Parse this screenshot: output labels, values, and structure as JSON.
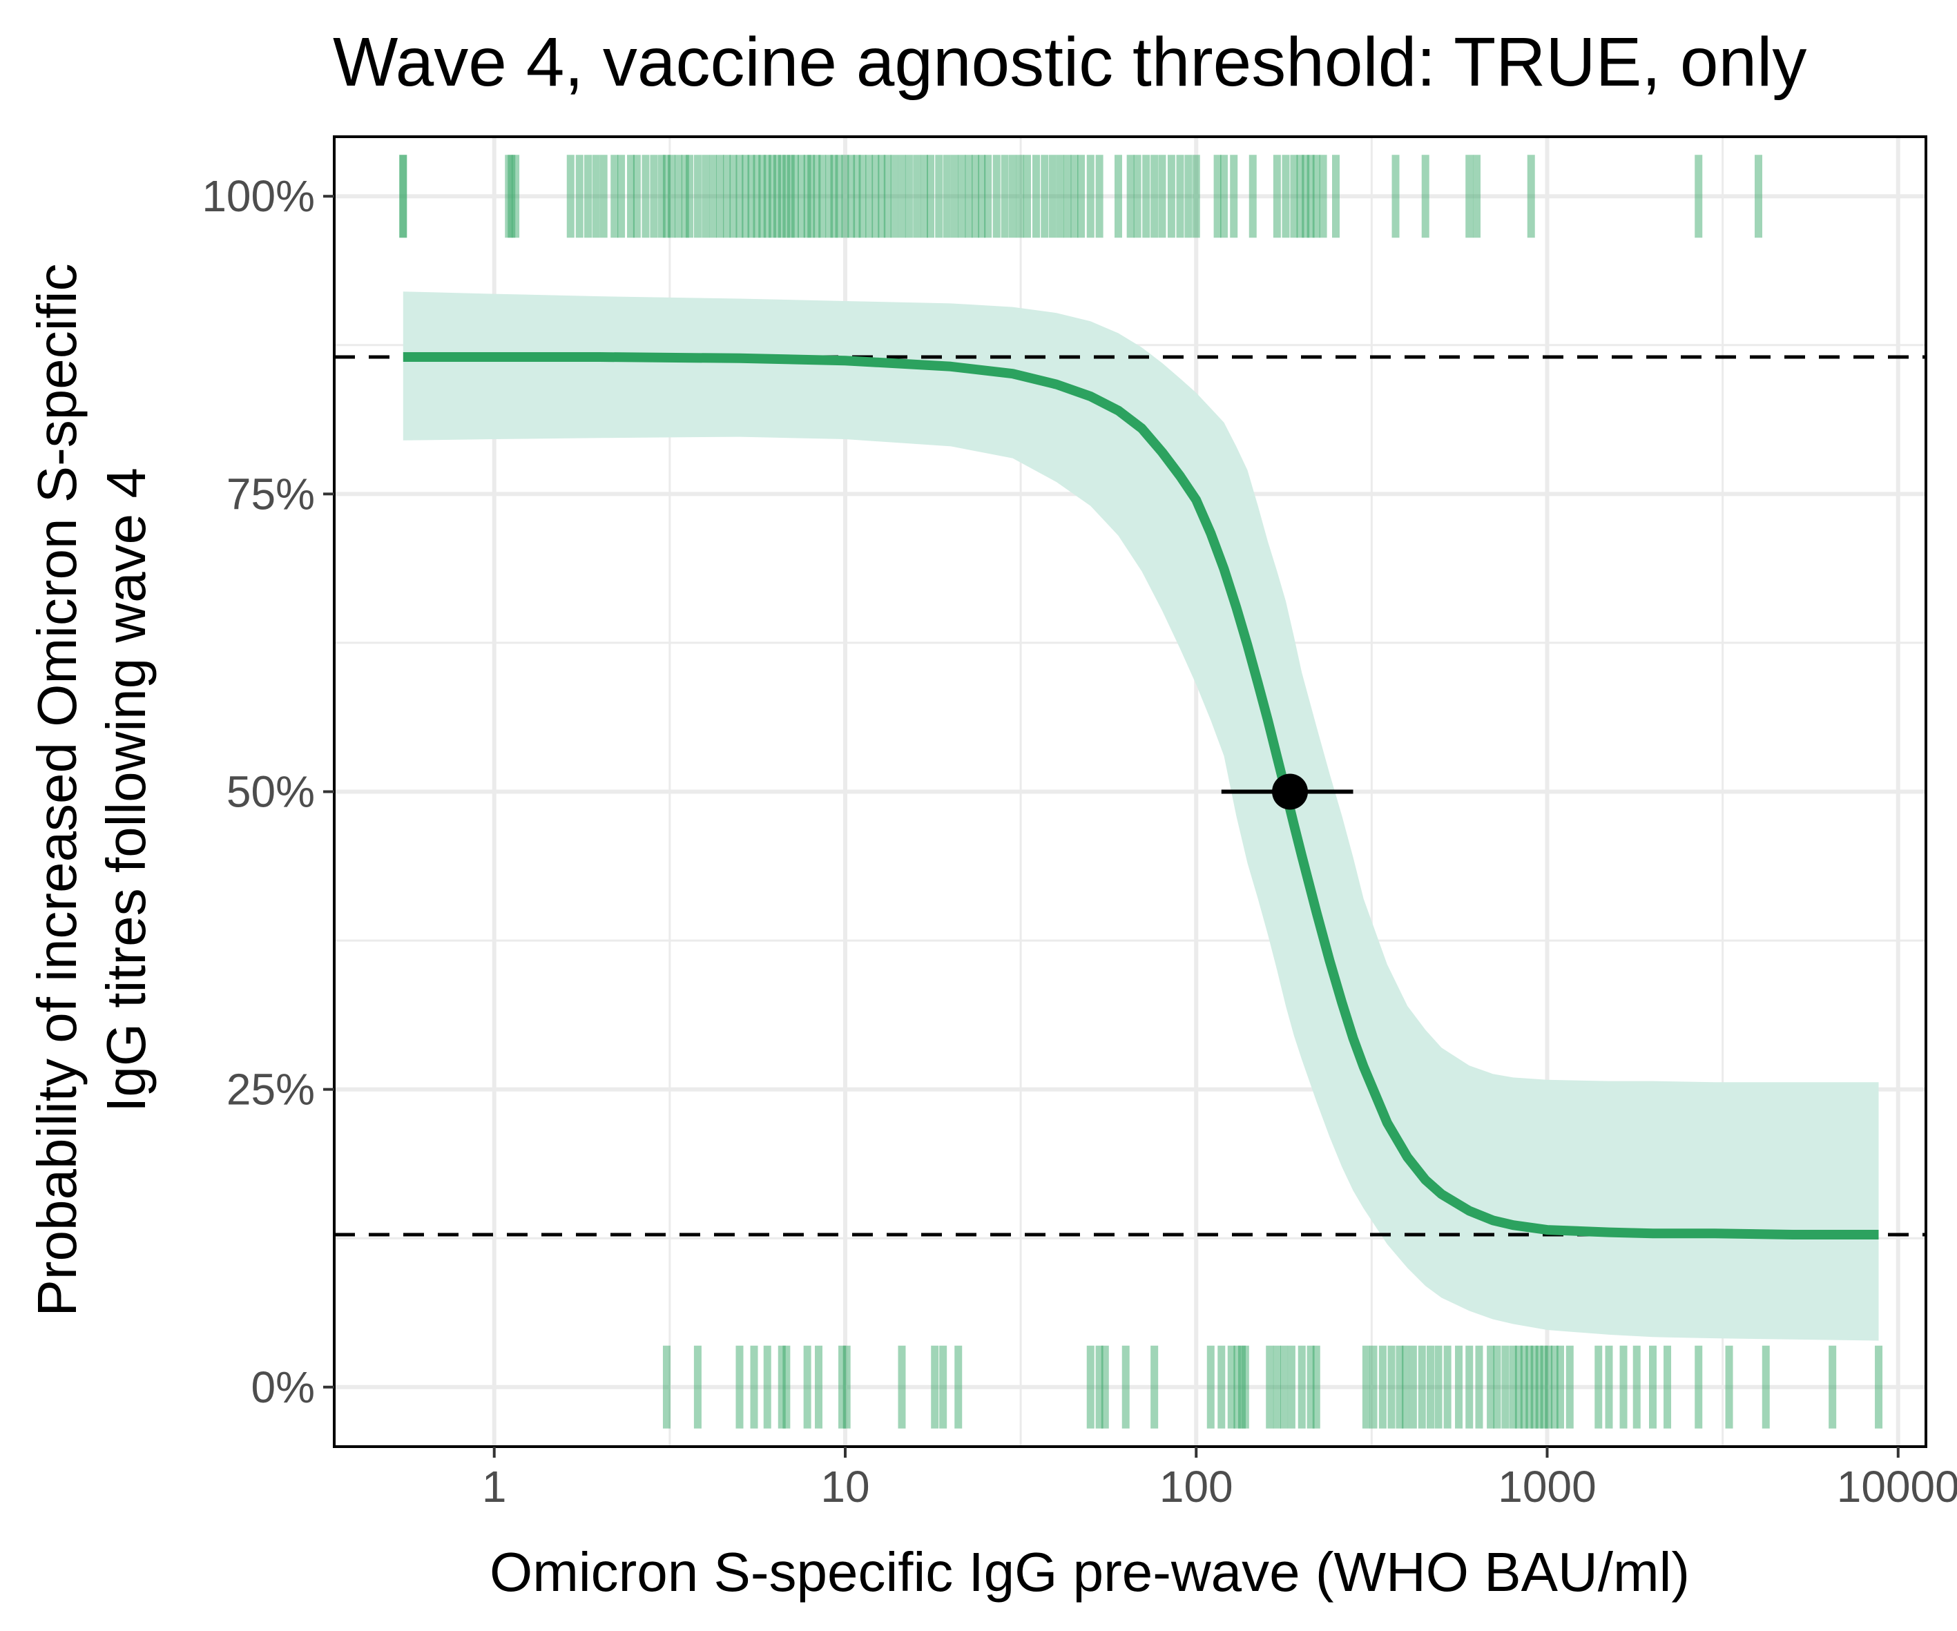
{
  "chart_data": {
    "type": "line",
    "title": "Wave 4, vaccine agnostic threshold: TRUE, only",
    "xlabel": "Omicron S-specific IgG pre-wave (WHO BAU/ml)",
    "ylabel_lines": [
      "Probability of increased Omicron S-specific",
      "IgG titres following wave 4"
    ],
    "x_scale": "log10",
    "xlim": [
      0.35,
      12000
    ],
    "ylim": [
      -0.05,
      1.05
    ],
    "x_ticks": [
      1,
      10,
      100,
      1000,
      10000
    ],
    "x_tick_labels": [
      "1",
      "10",
      "100",
      "1000",
      "10000"
    ],
    "y_ticks": [
      0,
      0.25,
      0.5,
      0.75,
      1.0
    ],
    "y_tick_labels": [
      "0%",
      "25%",
      "50%",
      "75%",
      "100%"
    ],
    "grid": true,
    "colors": {
      "line": "#2ca25f",
      "ribbon": "#d3ede5",
      "rug": "#2ca25f",
      "reference": "#000000",
      "point": "#000000"
    },
    "fit": {
      "x": [
        0.55,
        1,
        2,
        5,
        10,
        20,
        30,
        40,
        50,
        60,
        70,
        80,
        90,
        100,
        110,
        120,
        130,
        140,
        150,
        160,
        170,
        180,
        190,
        200,
        220,
        240,
        260,
        280,
        300,
        350,
        400,
        450,
        500,
        600,
        700,
        800,
        1000,
        1500,
        2000,
        3000,
        5000,
        8800
      ],
      "y": [
        0.865,
        0.865,
        0.865,
        0.864,
        0.862,
        0.857,
        0.851,
        0.842,
        0.832,
        0.82,
        0.805,
        0.785,
        0.765,
        0.745,
        0.717,
        0.687,
        0.655,
        0.623,
        0.591,
        0.56,
        0.529,
        0.5,
        0.472,
        0.446,
        0.399,
        0.358,
        0.323,
        0.293,
        0.269,
        0.222,
        0.193,
        0.174,
        0.162,
        0.148,
        0.14,
        0.136,
        0.132,
        0.13,
        0.129,
        0.129,
        0.128,
        0.128
      ]
    },
    "ci": {
      "x": [
        0.55,
        1,
        2,
        5,
        10,
        20,
        30,
        40,
        50,
        60,
        70,
        80,
        90,
        100,
        110,
        120,
        130,
        140,
        150,
        160,
        170,
        180,
        190,
        200,
        220,
        240,
        260,
        280,
        300,
        350,
        400,
        450,
        500,
        600,
        700,
        800,
        1000,
        1500,
        2000,
        3000,
        5000,
        8800
      ],
      "lower": [
        0.795,
        0.796,
        0.797,
        0.798,
        0.796,
        0.79,
        0.78,
        0.76,
        0.74,
        0.715,
        0.685,
        0.652,
        0.62,
        0.59,
        0.56,
        0.53,
        0.48,
        0.44,
        0.41,
        0.38,
        0.35,
        0.32,
        0.295,
        0.275,
        0.24,
        0.21,
        0.185,
        0.165,
        0.15,
        0.12,
        0.1,
        0.085,
        0.075,
        0.064,
        0.057,
        0.053,
        0.048,
        0.044,
        0.042,
        0.041,
        0.04,
        0.039
      ],
      "upper": [
        0.92,
        0.918,
        0.916,
        0.914,
        0.912,
        0.91,
        0.907,
        0.902,
        0.895,
        0.885,
        0.873,
        0.86,
        0.847,
        0.835,
        0.822,
        0.81,
        0.79,
        0.77,
        0.74,
        0.71,
        0.685,
        0.66,
        0.63,
        0.6,
        0.555,
        0.515,
        0.48,
        0.445,
        0.41,
        0.355,
        0.32,
        0.3,
        0.285,
        0.27,
        0.263,
        0.26,
        0.258,
        0.257,
        0.257,
        0.256,
        0.256,
        0.256
      ]
    },
    "reference_lines_y": [
      0.865,
      0.128
    ],
    "midpoint": {
      "x": 185,
      "y": 0.5,
      "x_lower": 118,
      "x_upper": 280
    },
    "rug_top_y": 1.0,
    "rug_top_x": [
      0.55,
      0.55,
      1.1,
      1.12,
      1.15,
      1.65,
      1.75,
      1.85,
      1.95,
      2.05,
      2.2,
      2.3,
      2.45,
      2.55,
      2.7,
      2.85,
      3.0,
      3.1,
      3.2,
      3.35,
      3.5,
      3.6,
      3.8,
      4.0,
      4.2,
      4.4,
      4.6,
      4.8,
      5.0,
      5.2,
      5.4,
      5.6,
      5.8,
      6.0,
      6.2,
      6.4,
      6.6,
      6.8,
      7.0,
      7.2,
      7.5,
      7.8,
      8.0,
      8.3,
      8.6,
      9.0,
      9.3,
      9.6,
      10.0,
      10.4,
      10.8,
      11.2,
      11.7,
      12.2,
      12.7,
      13.2,
      13.8,
      14.5,
      15.2,
      16.0,
      16.8,
      17.5,
      18.5,
      19.5,
      20.5,
      21.5,
      22.5,
      23.5,
      24.5,
      25.5,
      27.0,
      28.5,
      30.0,
      31.5,
      33.0,
      35.0,
      37.0,
      39.0,
      41.0,
      43.0,
      45.0,
      47.0,
      50.0,
      53.0,
      60.0,
      65.0,
      68.0,
      72.0,
      76.0,
      80.0,
      85.0,
      90.0,
      95.0,
      100.0,
      115.0,
      120.0,
      128.0,
      145.0,
      170.0,
      180.0,
      190.0,
      198.0,
      205.0,
      212.0,
      220.0,
      230.0,
      250.0,
      370.0,
      450.0,
      600.0,
      630.0,
      900.0,
      2700.0,
      4000.0
    ],
    "rug_bottom_y": 0.0,
    "rug_bottom_x": [
      3.1,
      3.8,
      5.0,
      5.5,
      6.0,
      6.6,
      6.8,
      7.8,
      8.4,
      9.8,
      10.1,
      14.5,
      18.0,
      19.0,
      21.0,
      50.0,
      53.0,
      55.0,
      63.0,
      76.0,
      110.0,
      118.0,
      126.0,
      131.0,
      135.0,
      138.0,
      162.0,
      170.0,
      178.0,
      187.0,
      200.0,
      212.0,
      220.0,
      305.0,
      320.0,
      340.0,
      360.0,
      380.0,
      395.0,
      415.0,
      440.0,
      465.0,
      490.0,
      520.0,
      560.0,
      600.0,
      640.0,
      690.0,
      720.0,
      760.0,
      800.0,
      830.0,
      860.0,
      890.0,
      920.0,
      950.0,
      980.0,
      1010.0,
      1050.0,
      1090.0,
      1160.0,
      1400.0,
      1500.0,
      1650.0,
      1800.0,
      2000.0,
      2200.0,
      2700.0,
      3300.0,
      4200.0,
      6500.0,
      8800.0
    ]
  }
}
